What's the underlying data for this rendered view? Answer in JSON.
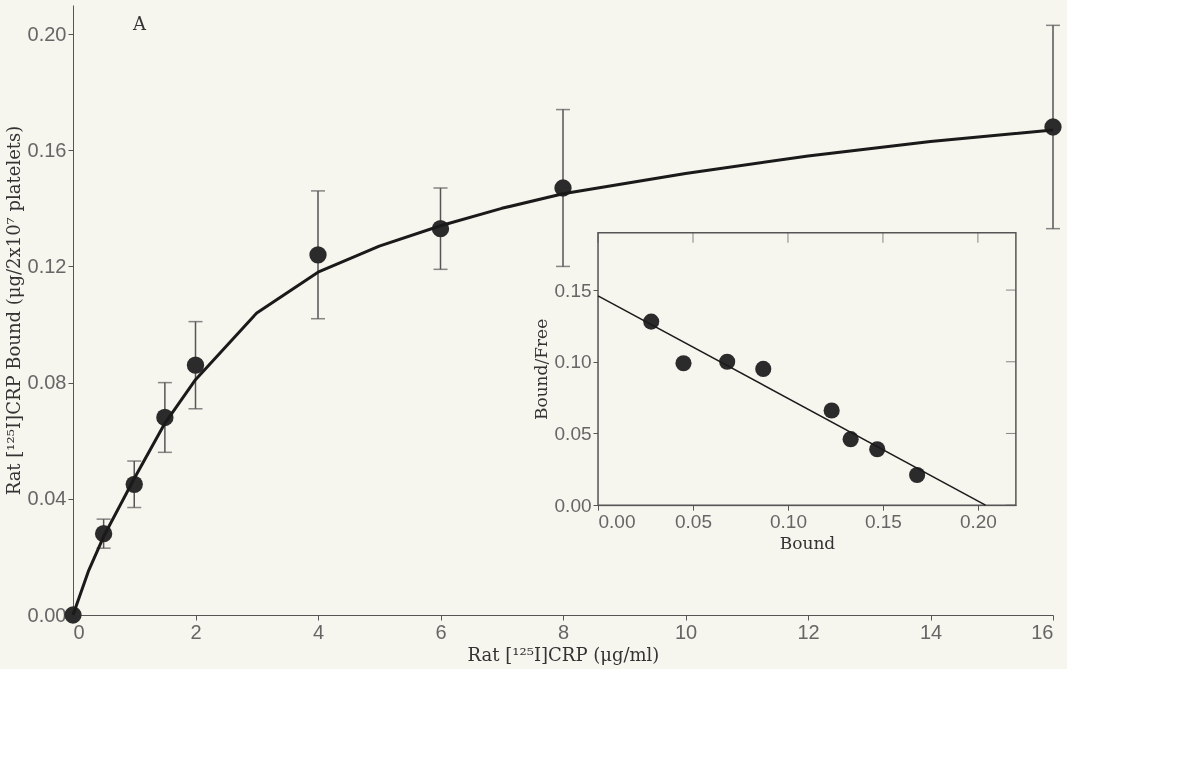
{
  "chart_data": [
    {
      "type": "scatter",
      "xlabel": "Rat [¹²⁵I]CRP (μg/ml)",
      "ylabel": "Rat [¹²⁵I]CRP Bound (μg/2x10⁷ platelets)",
      "xlim": [
        0,
        16
      ],
      "ylim": [
        0,
        0.21
      ],
      "xticks": [
        0,
        2,
        4,
        6,
        8,
        10,
        12,
        14,
        16
      ],
      "yticks": [
        {
          "value": 0,
          "label": "0.00"
        },
        0.04,
        0.08,
        0.12,
        0.16,
        {
          "value": 0.2,
          "label": "0.20"
        }
      ],
      "grid": false,
      "annotations": [
        "A"
      ],
      "series": [
        {
          "type": "scatter",
          "marker": "circle",
          "color": "#2b2b2b",
          "x": [
            0,
            0.5,
            1,
            1.5,
            2,
            4,
            6,
            8,
            16
          ],
          "values": [
            0,
            0.028,
            0.045,
            0.068,
            0.086,
            0.124,
            0.133,
            0.147,
            0.168
          ],
          "errors": [
            null,
            0.005,
            0.008,
            0.012,
            0.015,
            0.022,
            0.014,
            0.027,
            0.035
          ]
        },
        {
          "type": "line",
          "marker": "none",
          "color": "#1a1a1a",
          "x": [
            0,
            0.25,
            0.5,
            1,
            1.5,
            2,
            3,
            4,
            5,
            6,
            7,
            8,
            10,
            12,
            14,
            16
          ],
          "values": [
            0,
            0.015,
            0.027,
            0.047,
            0.066,
            0.081,
            0.104,
            0.118,
            0.127,
            0.134,
            0.14,
            0.145,
            0.152,
            0.158,
            0.163,
            0.167
          ]
        }
      ]
    },
    {
      "type": "scatter",
      "xlabel": "Bound",
      "ylabel": "Bound/Free",
      "xlim": [
        0,
        0.22
      ],
      "ylim": [
        0,
        0.19
      ],
      "xticks": [
        {
          "value": 0,
          "label": "0.00"
        },
        0.05,
        {
          "value": 0.1,
          "label": "0.10"
        },
        0.15,
        {
          "value": 0.2,
          "label": "0.20"
        }
      ],
      "yticks": [
        {
          "value": 0,
          "label": "0.00"
        },
        0.05,
        {
          "value": 0.1,
          "label": "0.10"
        },
        0.15
      ],
      "grid": false,
      "series": [
        {
          "type": "scatter",
          "marker": "circle",
          "color": "#2b2b2b",
          "x": [
            0.028,
            0.045,
            0.068,
            0.087,
            0.123,
            0.133,
            0.147,
            0.168
          ],
          "values": [
            0.128,
            0.099,
            0.1,
            0.095,
            0.066,
            0.046,
            0.039,
            0.021
          ]
        },
        {
          "type": "line",
          "marker": "none",
          "color": "#1a1a1a",
          "x": [
            0,
            0.204
          ],
          "values": [
            0.146,
            0
          ]
        }
      ]
    }
  ]
}
